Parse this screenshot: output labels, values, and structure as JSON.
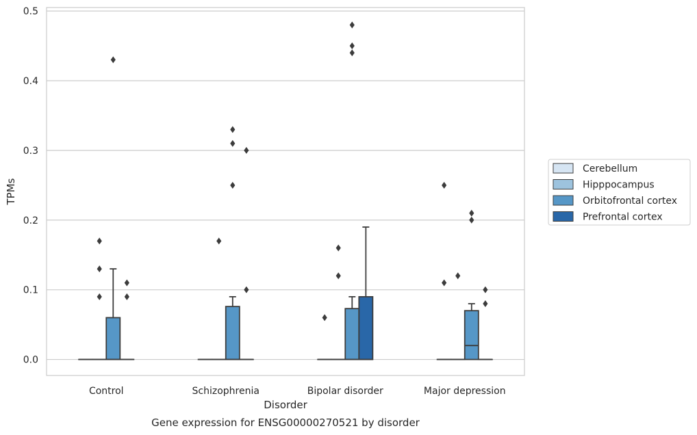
{
  "chart_data": {
    "type": "box",
    "xlabel": "Disorder",
    "ylabel": "TPMs",
    "caption": "Gene expression for ENSG00000270521 by disorder",
    "categories": [
      "Control",
      "Schizophrenia",
      "Bipolar disorder",
      "Major depression"
    ],
    "ylim": [
      -0.023,
      0.505
    ],
    "yticks": [
      0.0,
      0.1,
      0.2,
      0.3,
      0.4,
      0.5
    ],
    "ytick_labels": [
      "0.0",
      "0.1",
      "0.2",
      "0.3",
      "0.4",
      "0.5"
    ],
    "grid": "horizontal",
    "legend_position": "right",
    "series": [
      {
        "name": "Cerebellum",
        "color": "#d6e5f3",
        "boxes": [
          {
            "q1": 0,
            "median": 0,
            "q3": 0,
            "whisker_low": 0,
            "whisker_high": 0,
            "outliers": []
          },
          {
            "q1": 0,
            "median": 0,
            "q3": 0,
            "whisker_low": 0,
            "whisker_high": 0,
            "outliers": []
          },
          {
            "q1": 0,
            "median": 0,
            "q3": 0,
            "whisker_low": 0,
            "whisker_high": 0,
            "outliers": [
              0.06
            ]
          },
          {
            "q1": 0,
            "median": 0,
            "q3": 0,
            "whisker_low": 0,
            "whisker_high": 0,
            "outliers": [
              0.25,
              0.11
            ]
          }
        ]
      },
      {
        "name": "Hipppocampus",
        "color": "#9dc3de",
        "boxes": [
          {
            "q1": 0,
            "median": 0,
            "q3": 0,
            "whisker_low": 0,
            "whisker_high": 0,
            "outliers": [
              0.17,
              0.13,
              0.09
            ]
          },
          {
            "q1": 0,
            "median": 0,
            "q3": 0,
            "whisker_low": 0,
            "whisker_high": 0,
            "outliers": [
              0.17
            ]
          },
          {
            "q1": 0,
            "median": 0,
            "q3": 0,
            "whisker_low": 0,
            "whisker_high": 0,
            "outliers": [
              0.16,
              0.12
            ]
          },
          {
            "q1": 0,
            "median": 0,
            "q3": 0,
            "whisker_low": 0,
            "whisker_high": 0,
            "outliers": [
              0.12
            ]
          }
        ]
      },
      {
        "name": "Orbitofrontal cortex",
        "color": "#5697c7",
        "boxes": [
          {
            "q1": 0,
            "median": 0,
            "q3": 0.06,
            "whisker_low": 0,
            "whisker_high": 0.13,
            "outliers": [
              0.43
            ]
          },
          {
            "q1": 0,
            "median": 0,
            "q3": 0.076,
            "whisker_low": 0,
            "whisker_high": 0.09,
            "outliers": [
              0.33,
              0.31,
              0.25
            ]
          },
          {
            "q1": 0,
            "median": 0,
            "q3": 0.073,
            "whisker_low": 0,
            "whisker_high": 0.09,
            "outliers": [
              0.48,
              0.45,
              0.44
            ]
          },
          {
            "q1": 0,
            "median": 0.02,
            "q3": 0.07,
            "whisker_low": 0,
            "whisker_high": 0.08,
            "outliers": [
              0.21,
              0.2
            ]
          }
        ]
      },
      {
        "name": "Prefrontal cortex",
        "color": "#2967a8",
        "boxes": [
          {
            "q1": 0,
            "median": 0,
            "q3": 0,
            "whisker_low": 0,
            "whisker_high": 0,
            "outliers": [
              0.11,
              0.09
            ]
          },
          {
            "q1": 0,
            "median": 0,
            "q3": 0,
            "whisker_low": 0,
            "whisker_high": 0,
            "outliers": [
              0.3,
              0.1
            ]
          },
          {
            "q1": 0,
            "median": 0,
            "q3": 0.09,
            "whisker_low": 0,
            "whisker_high": 0.19,
            "outliers": []
          },
          {
            "q1": 0,
            "median": 0,
            "q3": 0,
            "whisker_low": 0,
            "whisker_high": 0,
            "outliers": [
              0.1,
              0.08
            ]
          }
        ]
      }
    ]
  },
  "colors": {
    "grid": "#cccccc",
    "frame": "#cccccc",
    "edge": "#3c3c3c"
  }
}
